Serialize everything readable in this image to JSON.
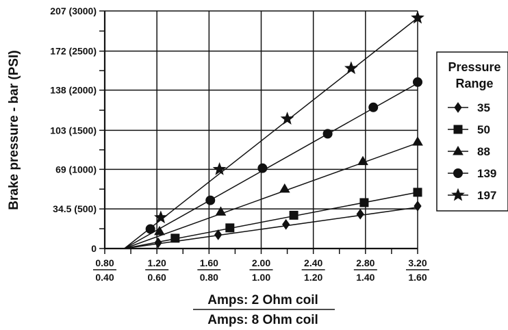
{
  "chart_data": {
    "type": "line",
    "ylabel": "Brake pressure - bar (PSI)",
    "xlabel_top": "Amps: 2 Ohm coil",
    "xlabel_bottom": "Amps: 8 Ohm coil",
    "y_ticks": [
      {
        "value": 0,
        "label": "0"
      },
      {
        "value": 34.5,
        "label": "34.5 (500)"
      },
      {
        "value": 69,
        "label": "69 (1000)"
      },
      {
        "value": 103,
        "label": "103 (1500)"
      },
      {
        "value": 138,
        "label": "138 (2000)"
      },
      {
        "value": 172,
        "label": "172 (2500)"
      },
      {
        "value": 207,
        "label": "207 (3000)"
      }
    ],
    "ylim": [
      0,
      207
    ],
    "xlim": [
      0.8,
      3.2
    ],
    "x_ticks": [
      {
        "value": 0.8,
        "top": "0.80",
        "bottom": "0.40"
      },
      {
        "value": 1.2,
        "top": "1.20",
        "bottom": "0.60"
      },
      {
        "value": 1.6,
        "top": "1.60",
        "bottom": "0.80"
      },
      {
        "value": 2.0,
        "top": "2.00",
        "bottom": "1.00"
      },
      {
        "value": 2.4,
        "top": "2.40",
        "bottom": "1.20"
      },
      {
        "value": 2.8,
        "top": "2.80",
        "bottom": "1.40"
      },
      {
        "value": 3.2,
        "top": "3.20",
        "bottom": "1.60"
      }
    ],
    "legend": {
      "title_line1": "Pressure",
      "title_line2": "Range",
      "position": "right"
    },
    "series": [
      {
        "name": "35",
        "marker": "diamond",
        "line": [
          [
            0.95,
            0
          ],
          [
            3.2,
            36
          ]
        ],
        "points": [
          [
            1.21,
            5
          ],
          [
            1.67,
            12
          ],
          [
            2.19,
            21
          ],
          [
            2.76,
            30
          ],
          [
            3.2,
            37
          ]
        ]
      },
      {
        "name": "50",
        "marker": "square",
        "line": [
          [
            0.95,
            0
          ],
          [
            3.2,
            49
          ]
        ],
        "points": [
          [
            1.34,
            9
          ],
          [
            1.76,
            18
          ],
          [
            2.25,
            29
          ],
          [
            2.79,
            40
          ],
          [
            3.2,
            49
          ]
        ]
      },
      {
        "name": "88",
        "marker": "triangle",
        "line": [
          [
            0.95,
            0
          ],
          [
            3.2,
            92
          ]
        ],
        "points": [
          [
            1.22,
            15
          ],
          [
            1.69,
            32
          ],
          [
            2.18,
            52
          ],
          [
            2.78,
            76
          ],
          [
            3.2,
            93
          ]
        ]
      },
      {
        "name": "139",
        "marker": "circle",
        "line": [
          [
            0.95,
            0
          ],
          [
            3.2,
            144
          ]
        ],
        "points": [
          [
            1.15,
            17
          ],
          [
            1.61,
            42
          ],
          [
            2.01,
            70
          ],
          [
            2.51,
            100
          ],
          [
            2.86,
            123
          ],
          [
            3.2,
            145
          ]
        ]
      },
      {
        "name": "197",
        "marker": "star",
        "line": [
          [
            0.95,
            0
          ],
          [
            3.2,
            201
          ]
        ],
        "points": [
          [
            1.23,
            27
          ],
          [
            1.68,
            69
          ],
          [
            2.2,
            113
          ],
          [
            2.69,
            157
          ],
          [
            3.2,
            201
          ]
        ]
      }
    ]
  }
}
